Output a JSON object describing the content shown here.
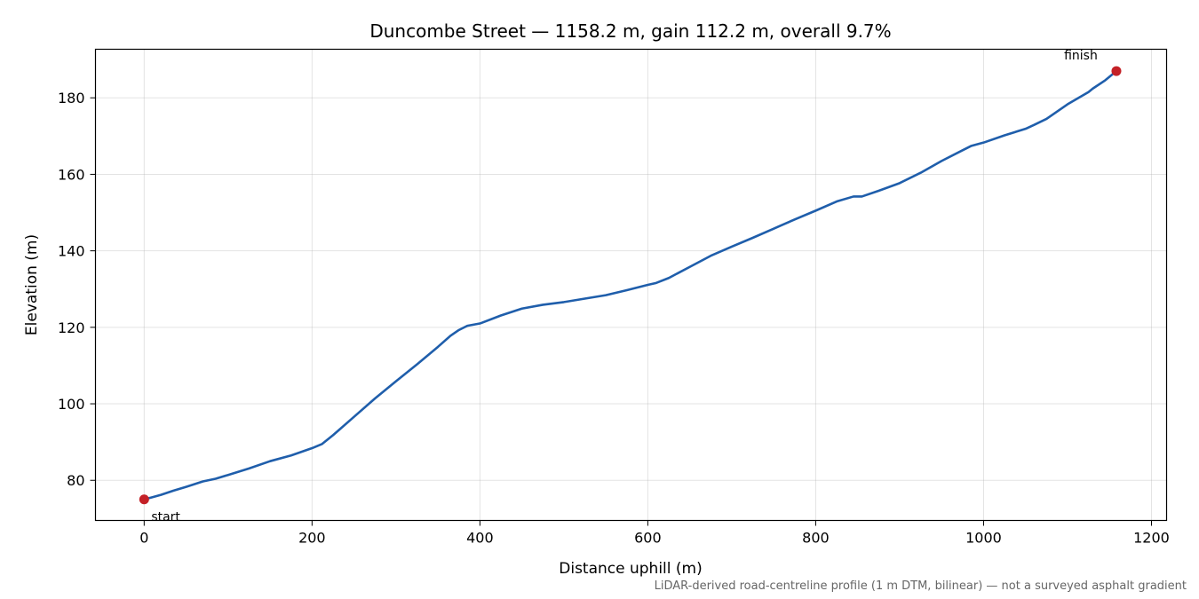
{
  "chart_data": {
    "type": "line",
    "title": "Duncombe Street — 1158.2 m, gain 112.2 m, overall 9.7%",
    "xlabel": "Distance uphill (m)",
    "ylabel": "Elevation (m)",
    "xlim": [
      -58,
      1218
    ],
    "ylim": [
      69.5,
      192.7
    ],
    "xticks": [
      0,
      200,
      400,
      600,
      800,
      1000,
      1200
    ],
    "yticks": [
      80,
      100,
      120,
      140,
      160,
      180
    ],
    "grid": true,
    "series": [
      {
        "color": "#1f5eab",
        "x": [
          0,
          10,
          20,
          35,
          50,
          70,
          85,
          100,
          125,
          150,
          175,
          200,
          212,
          225,
          250,
          275,
          300,
          325,
          350,
          365,
          375,
          385,
          395,
          400,
          425,
          450,
          475,
          500,
          525,
          550,
          575,
          600,
          610,
          625,
          650,
          675,
          700,
          725,
          750,
          775,
          800,
          825,
          845,
          855,
          875,
          900,
          925,
          950,
          975,
          985,
          1000,
          1025,
          1050,
          1060,
          1075,
          1100,
          1125,
          1130,
          1145,
          1158.2
        ],
        "y": [
          75.0,
          75.6,
          76.2,
          77.3,
          78.3,
          79.7,
          80.4,
          81.4,
          83.1,
          85.0,
          86.5,
          88.4,
          89.5,
          91.8,
          96.6,
          101.4,
          105.9,
          110.3,
          114.9,
          117.8,
          119.3,
          120.4,
          120.8,
          121.0,
          123.1,
          124.9,
          125.9,
          126.6,
          127.5,
          128.4,
          129.7,
          131.1,
          131.6,
          132.9,
          135.8,
          138.7,
          141.1,
          143.4,
          145.8,
          148.2,
          150.5,
          152.9,
          154.2,
          154.2,
          155.7,
          157.7,
          160.4,
          163.5,
          166.3,
          167.4,
          168.3,
          170.2,
          171.9,
          172.9,
          174.5,
          178.3,
          181.5,
          182.4,
          184.6,
          187.0
        ]
      }
    ],
    "markers": [
      {
        "x": 0,
        "y": 75.0,
        "label": "start",
        "color": "#c42127"
      },
      {
        "x": 1158.2,
        "y": 187.0,
        "label": "finish",
        "color": "#c42127"
      }
    ],
    "footnote": "LiDAR-derived road-centreline profile (1 m DTM, bilinear) — not a surveyed asphalt gradient"
  }
}
